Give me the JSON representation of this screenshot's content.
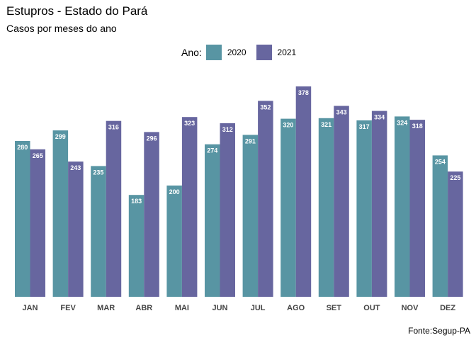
{
  "title": "Estupros - Estado do Pará",
  "subtitle": "Casos por meses do ano",
  "caption": "Fonte:Segup-PA",
  "legend": {
    "title": "Ano:"
  },
  "colors": {
    "2020": "#5895a3",
    "2021": "#67669f"
  },
  "chart_data": {
    "type": "bar",
    "title": "Estupros - Estado do Pará",
    "subtitle": "Casos por meses do ano",
    "categories": [
      "JAN",
      "FEV",
      "MAR",
      "ABR",
      "MAI",
      "JUN",
      "JUL",
      "AGO",
      "SET",
      "OUT",
      "NOV",
      "DEZ"
    ],
    "series": [
      {
        "name": "2020",
        "values": [
          280,
          299,
          235,
          183,
          200,
          274,
          291,
          320,
          321,
          317,
          324,
          254
        ]
      },
      {
        "name": "2021",
        "values": [
          265,
          243,
          316,
          296,
          323,
          312,
          352,
          378,
          343,
          334,
          318,
          225
        ]
      }
    ],
    "ylim": [
      0,
      378
    ],
    "grid": false,
    "legend_position": "top",
    "data_labels": true
  }
}
